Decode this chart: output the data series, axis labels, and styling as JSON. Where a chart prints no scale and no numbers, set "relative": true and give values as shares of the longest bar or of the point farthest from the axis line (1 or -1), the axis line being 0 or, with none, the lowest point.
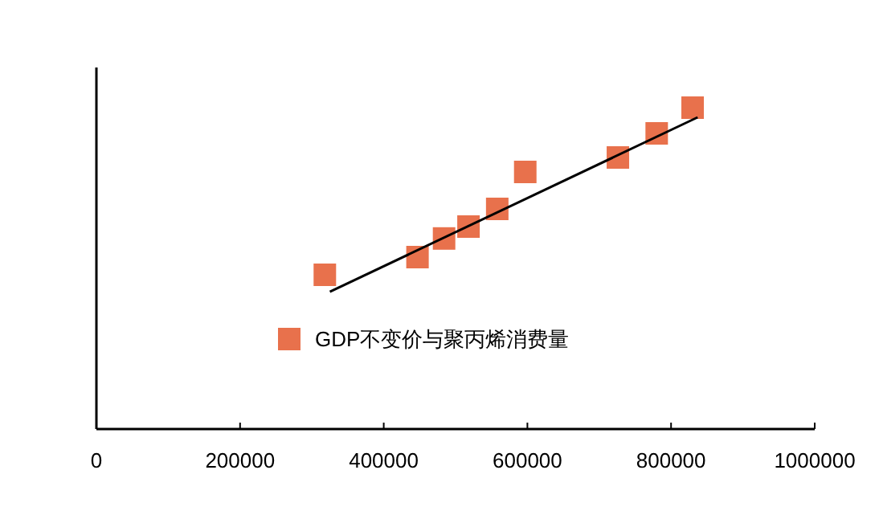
{
  "chart_data": {
    "type": "scatter",
    "relative": true,
    "legend": "center",
    "xlim": [
      0,
      1000000
    ],
    "xticks": [
      0,
      200000,
      400000,
      600000,
      800000,
      1000000
    ],
    "series": [
      {
        "name": "GDP不变价与聚丙烯消费量",
        "color": "#e8714c",
        "marker": "square",
        "x": [
          318000,
          447000,
          484000,
          518000,
          558000,
          597000,
          726000,
          780000,
          830000
        ],
        "values": [
          0.48,
          0.535,
          0.593,
          0.63,
          0.685,
          0.8,
          0.845,
          0.92,
          1
        ]
      },
      {
        "type": "line",
        "color": "#000000",
        "marker": "none",
        "x": [
          325000,
          837000
        ],
        "values": [
          0.427,
          0.97
        ]
      }
    ]
  }
}
